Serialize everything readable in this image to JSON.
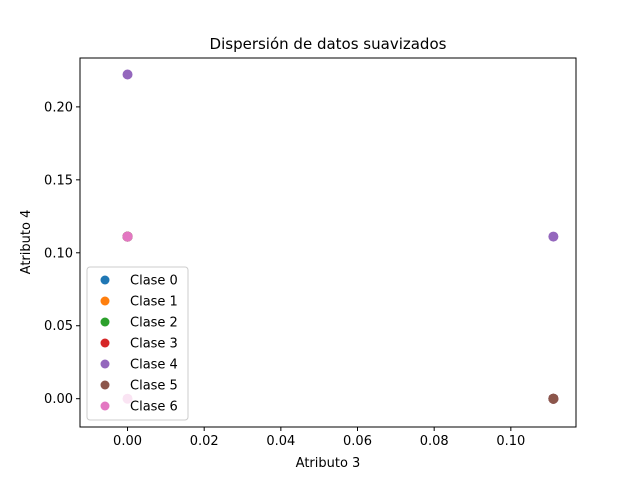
{
  "chart_data": {
    "type": "scatter",
    "title": "Dispersión de datos suavizados",
    "xlabel": "Atributo 3",
    "ylabel": "Atributo 4",
    "xlim": [
      -0.0124,
      0.117
    ],
    "ylim": [
      -0.0194,
      0.2335
    ],
    "xticks": [
      0.0,
      0.02,
      0.04,
      0.06,
      0.08,
      0.1
    ],
    "xtick_labels": [
      "0.00",
      "0.02",
      "0.04",
      "0.06",
      "0.08",
      "0.10"
    ],
    "yticks": [
      0.0,
      0.05,
      0.1,
      0.15,
      0.2
    ],
    "ytick_labels": [
      "0.00",
      "0.05",
      "0.10",
      "0.15",
      "0.20"
    ],
    "grid": false,
    "legend_position": "lower-left",
    "series": [
      {
        "name": "Clase 0",
        "color": "#1f77b4",
        "x": [
          0.0,
          0.1111
        ],
        "y": [
          0.1111,
          0.0
        ]
      },
      {
        "name": "Clase 1",
        "color": "#ff7f0e",
        "x": [
          0.0,
          0.1111
        ],
        "y": [
          0.1111,
          0.0
        ]
      },
      {
        "name": "Clase 2",
        "color": "#2ca02c",
        "x": [
          0.0,
          0.1111
        ],
        "y": [
          0.1111,
          0.0
        ]
      },
      {
        "name": "Clase 3",
        "color": "#d62728",
        "x": [
          0.0,
          0.1111
        ],
        "y": [
          0.1111,
          0.0
        ]
      },
      {
        "name": "Clase 4",
        "color": "#9467bd",
        "x": [
          0.0,
          0.0,
          0.1111,
          0.1111
        ],
        "y": [
          0.2222,
          0.1111,
          0.1111,
          0.0
        ]
      },
      {
        "name": "Clase 5",
        "color": "#8c564b",
        "x": [
          0.0,
          0.1111
        ],
        "y": [
          0.1111,
          0.0
        ]
      },
      {
        "name": "Clase 6",
        "color": "#e377c2",
        "x": [
          0.0,
          0.0
        ],
        "y": [
          0.1111,
          0.0
        ]
      }
    ]
  }
}
